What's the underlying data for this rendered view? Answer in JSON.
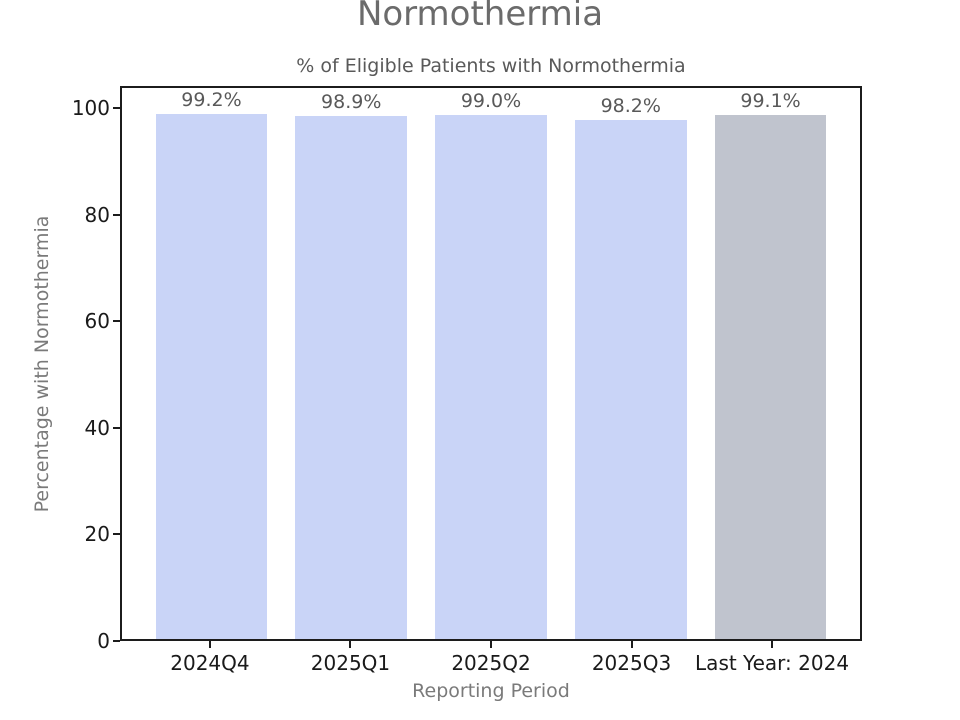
{
  "chart_data": {
    "type": "bar",
    "title": "Normothermia",
    "subtitle": "% of Eligible Patients with Normothermia",
    "xlabel": "Reporting Period",
    "ylabel": "Percentage with Normothermia",
    "categories": [
      "2024Q4",
      "2025Q1",
      "2025Q2",
      "2025Q3",
      "Last Year: 2024"
    ],
    "values": [
      99.2,
      98.9,
      99.0,
      98.2,
      99.1
    ],
    "value_labels": [
      "99.2%",
      "98.9%",
      "99.0%",
      "98.2%",
      "99.1%"
    ],
    "bar_colors": [
      "#c9d4f7",
      "#c9d4f7",
      "#c9d4f7",
      "#c9d4f7",
      "#c0c4ce"
    ],
    "ylim": [
      0,
      104.16
    ],
    "yticks": [
      0,
      20,
      40,
      60,
      80,
      100
    ],
    "grid": false,
    "legend": "none",
    "colors": {
      "default_bar": "#c9d4f7",
      "comparison_bar": "#c0c4ce",
      "frame": "#1c1c1c",
      "title_text": "#6b6b6b",
      "label_text": "#595959",
      "axis_text": "#7a7a7a",
      "tick_text": "#1a1a1a"
    }
  }
}
